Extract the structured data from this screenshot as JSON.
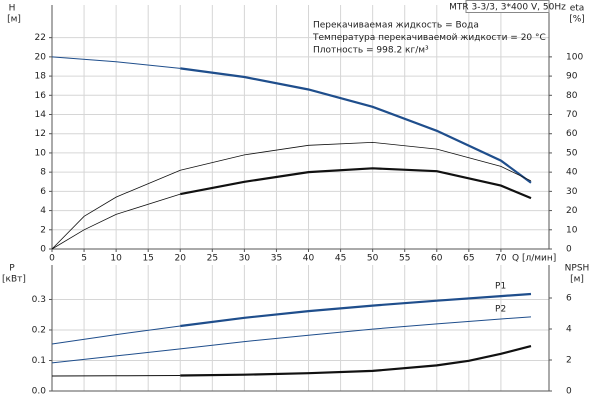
{
  "chart_data": [
    {
      "type": "line",
      "title": "MTR 3-3/3, 3*400 V, 50Hz",
      "annotations": [
        "Перекачиваемая жидкость = Вода",
        "Температура перекачиваемой жидкости = 20 °C",
        "Плотность = 998.2 кг/м³"
      ],
      "y_label": "H",
      "y_unit": "[м]",
      "y2_label": "eta",
      "y2_unit": "[%]",
      "x_label": "Q [л/мин]",
      "xlim": [
        0,
        77.5
      ],
      "xticks": [
        0,
        5,
        10,
        15,
        20,
        25,
        30,
        35,
        40,
        45,
        50,
        55,
        60,
        65,
        70
      ],
      "xtick_labels": true,
      "ylim": [
        0,
        25.4
      ],
      "yticks": [
        0,
        2,
        4,
        6,
        8,
        10,
        12,
        14,
        16,
        18,
        20,
        22
      ],
      "y2lim": [
        0,
        127
      ],
      "y2ticks": [
        0,
        10,
        20,
        30,
        40,
        50,
        60,
        70,
        80,
        90,
        100
      ],
      "grid": true,
      "series": [
        {
          "color": "#1f4e8c",
          "width": 1,
          "x": [
            0,
            10,
            20
          ],
          "values": [
            20,
            19.5,
            18.8
          ]
        },
        {
          "color": "#1f4e8c",
          "width": 2.2,
          "x": [
            20,
            30,
            40,
            50,
            60,
            70,
            74.7
          ],
          "values": [
            18.8,
            17.9,
            16.6,
            14.8,
            12.3,
            9.2,
            6.9
          ]
        },
        {
          "color": "#111111",
          "width": 0.8,
          "axis": "y2",
          "x": [
            0,
            5,
            10,
            20,
            30,
            40,
            50,
            60,
            70,
            74.7
          ],
          "values": [
            0,
            17,
            27,
            41,
            49,
            54,
            55.5,
            52,
            43,
            35.5
          ]
        },
        {
          "color": "#111111",
          "width": 0.8,
          "axis": "y2",
          "x": [
            0,
            5,
            10,
            20
          ],
          "values": [
            0,
            10,
            18,
            28.6
          ]
        },
        {
          "color": "#111111",
          "width": 2.2,
          "axis": "y2",
          "x": [
            20,
            30,
            40,
            50,
            60,
            70,
            74.7
          ],
          "values": [
            28.6,
            35,
            40,
            42,
            40.5,
            33,
            26.5
          ]
        }
      ]
    },
    {
      "type": "line",
      "y_label": "P",
      "y_unit": "[кВт]",
      "y2_label": "NPSH",
      "y2_unit": "[м]",
      "xlim": [
        0,
        77.5
      ],
      "xticks": [
        0,
        5,
        10,
        15,
        20,
        25,
        30,
        35,
        40,
        45,
        50,
        55,
        60,
        65,
        70
      ],
      "xtick_labels": false,
      "ylim": [
        0,
        0.413
      ],
      "yticks": [
        {
          "value": 0,
          "label": "0.0"
        },
        0.1,
        0.2,
        0.3
      ],
      "y2lim": [
        0,
        8.13
      ],
      "y2ticks": [
        0,
        2,
        4,
        6
      ],
      "grid": true,
      "series": [
        {
          "color": "#1f4e8c",
          "width": 1,
          "x": [
            0,
            10,
            20
          ],
          "values": [
            0.154,
            0.185,
            0.213
          ]
        },
        {
          "name": "P1",
          "color": "#1f4e8c",
          "width": 2.2,
          "x": [
            20,
            30,
            40,
            50,
            60,
            70,
            74.7
          ],
          "values": [
            0.213,
            0.24,
            0.262,
            0.28,
            0.296,
            0.311,
            0.318
          ]
        },
        {
          "name": "P2",
          "color": "#1f4e8c",
          "width": 1,
          "x": [
            0,
            10,
            20,
            30,
            40,
            50,
            60,
            70,
            74.7
          ],
          "values": [
            0.092,
            0.115,
            0.138,
            0.162,
            0.183,
            0.203,
            0.22,
            0.236,
            0.243
          ]
        },
        {
          "color": "#111111",
          "width": 1,
          "axis": "y2",
          "x": [
            0,
            10,
            20
          ],
          "values": [
            0.97,
            0.98,
            1.0
          ]
        },
        {
          "color": "#111111",
          "width": 2.2,
          "axis": "y2",
          "x": [
            20,
            30,
            40,
            50,
            60,
            65,
            70,
            74.7
          ],
          "values": [
            1.0,
            1.05,
            1.15,
            1.3,
            1.65,
            1.95,
            2.4,
            2.9
          ]
        }
      ]
    }
  ]
}
